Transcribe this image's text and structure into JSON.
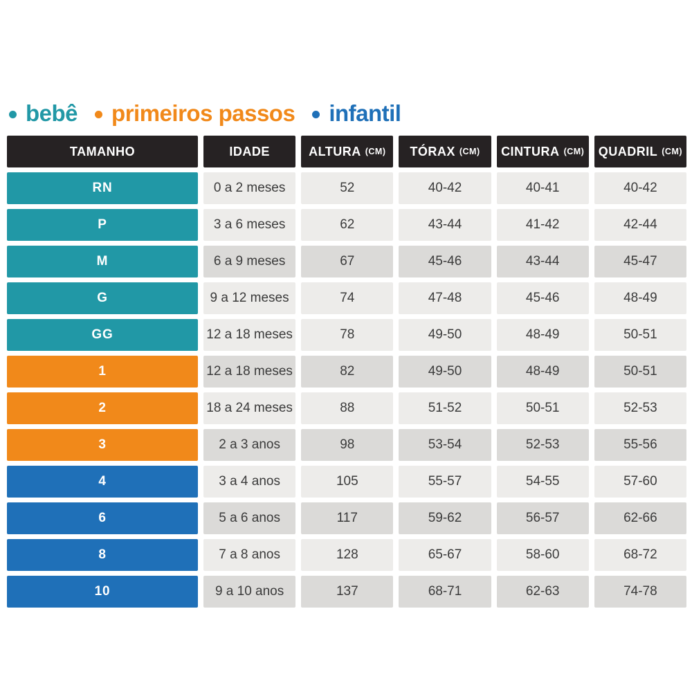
{
  "legend": {
    "items": [
      {
        "label": "bebê",
        "group": "bebe"
      },
      {
        "label": "primeiros passos",
        "group": "primeiros"
      },
      {
        "label": "infantil",
        "group": "infantil"
      }
    ]
  },
  "chart_data": {
    "type": "table",
    "columns": [
      {
        "label": "TAMANHO",
        "unit": ""
      },
      {
        "label": "IDADE",
        "unit": ""
      },
      {
        "label": "ALTURA",
        "unit": "(CM)"
      },
      {
        "label": "TÓRAX",
        "unit": "(CM)"
      },
      {
        "label": "CINTURA",
        "unit": "(CM)"
      },
      {
        "label": "QUADRIL",
        "unit": "(CM)"
      }
    ],
    "rows": [
      {
        "tamanho": "RN",
        "idade": "0 a 2 meses",
        "altura": "52",
        "torax": "40-42",
        "cintura": "40-41",
        "quadril": "40-42",
        "group": "bebe",
        "shade": "light"
      },
      {
        "tamanho": "P",
        "idade": "3 a 6 meses",
        "altura": "62",
        "torax": "43-44",
        "cintura": "41-42",
        "quadril": "42-44",
        "group": "bebe",
        "shade": "light"
      },
      {
        "tamanho": "M",
        "idade": "6 a 9 meses",
        "altura": "67",
        "torax": "45-46",
        "cintura": "43-44",
        "quadril": "45-47",
        "group": "bebe",
        "shade": "dark"
      },
      {
        "tamanho": "G",
        "idade": "9 a 12 meses",
        "altura": "74",
        "torax": "47-48",
        "cintura": "45-46",
        "quadril": "48-49",
        "group": "bebe",
        "shade": "light"
      },
      {
        "tamanho": "GG",
        "idade": "12 a 18 meses",
        "altura": "78",
        "torax": "49-50",
        "cintura": "48-49",
        "quadril": "50-51",
        "group": "bebe",
        "shade": "light"
      },
      {
        "tamanho": "1",
        "idade": "12 a 18 meses",
        "altura": "82",
        "torax": "49-50",
        "cintura": "48-49",
        "quadril": "50-51",
        "group": "primeiros",
        "shade": "dark"
      },
      {
        "tamanho": "2",
        "idade": "18 a 24 meses",
        "altura": "88",
        "torax": "51-52",
        "cintura": "50-51",
        "quadril": "52-53",
        "group": "primeiros",
        "shade": "light"
      },
      {
        "tamanho": "3",
        "idade": "2 a 3 anos",
        "altura": "98",
        "torax": "53-54",
        "cintura": "52-53",
        "quadril": "55-56",
        "group": "primeiros",
        "shade": "dark"
      },
      {
        "tamanho": "4",
        "idade": "3 a 4 anos",
        "altura": "105",
        "torax": "55-57",
        "cintura": "54-55",
        "quadril": "57-60",
        "group": "infantil",
        "shade": "light"
      },
      {
        "tamanho": "6",
        "idade": "5 a 6 anos",
        "altura": "117",
        "torax": "59-62",
        "cintura": "56-57",
        "quadril": "62-66",
        "group": "infantil",
        "shade": "dark"
      },
      {
        "tamanho": "8",
        "idade": "7 a 8 anos",
        "altura": "128",
        "torax": "65-67",
        "cintura": "58-60",
        "quadril": "68-72",
        "group": "infantil",
        "shade": "light"
      },
      {
        "tamanho": "10",
        "idade": "9 a 10 anos",
        "altura": "137",
        "torax": "68-71",
        "cintura": "62-63",
        "quadril": "74-78",
        "group": "infantil",
        "shade": "dark"
      }
    ]
  },
  "colors": {
    "bebe": "#2198A6",
    "primeiros_passos": "#F1891A",
    "infantil": "#1F70B8",
    "header_bg": "#262223",
    "row_light": "#EDECEA",
    "row_dark": "#DBDAD8",
    "cell_text": "#3B3B3B",
    "page_bg": "#FFFFFF"
  }
}
